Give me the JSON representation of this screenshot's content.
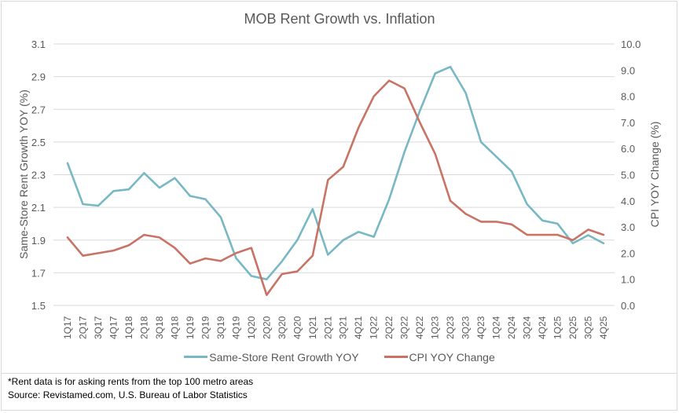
{
  "chart_data": {
    "type": "line",
    "title": "MOB Rent Growth vs. Inflation",
    "xlabel": "",
    "ylabel": "Same-Store Rent Growth YOY (%)",
    "y2label": "CPI YOY Change (%)",
    "ylim": [
      1.5,
      3.1
    ],
    "y2lim": [
      0.0,
      10.0
    ],
    "yticks": [
      "1.5",
      "1.7",
      "1.9",
      "2.1",
      "2.3",
      "2.5",
      "2.7",
      "2.9",
      "3.1"
    ],
    "y2ticks": [
      "0.0",
      "1.0",
      "2.0",
      "3.0",
      "4.0",
      "5.0",
      "6.0",
      "7.0",
      "8.0",
      "9.0",
      "10.0"
    ],
    "grid": true,
    "legend_position": "bottom",
    "categories": [
      "1Q17",
      "2Q17",
      "3Q17",
      "4Q17",
      "1Q18",
      "2Q18",
      "3Q18",
      "4Q18",
      "1Q19",
      "2Q19",
      "3Q19",
      "4Q19",
      "1Q20",
      "2Q20",
      "3Q20",
      "4Q20",
      "1Q21",
      "2Q21",
      "3Q21",
      "4Q21",
      "1Q22",
      "2Q22",
      "3Q22",
      "4Q22",
      "1Q23",
      "2Q23",
      "3Q23",
      "4Q23",
      "1Q24",
      "2Q24",
      "3Q24",
      "4Q24",
      "1Q25",
      "2Q25",
      "3Q25",
      "4Q25"
    ],
    "series": [
      {
        "name": "Same-Store Rent Growth YOY",
        "axis": "left",
        "color": "#78b8c4",
        "values": [
          2.37,
          2.12,
          2.11,
          2.2,
          2.21,
          2.31,
          2.22,
          2.28,
          2.17,
          2.15,
          2.04,
          1.79,
          1.68,
          1.66,
          1.77,
          1.9,
          2.09,
          1.81,
          1.9,
          1.95,
          1.92,
          2.15,
          2.44,
          2.69,
          2.92,
          2.96,
          2.8,
          2.5,
          2.41,
          2.32,
          2.12,
          2.02,
          2.0,
          1.88,
          1.93,
          1.88
        ]
      },
      {
        "name": "CPI YOY Change",
        "axis": "right",
        "color": "#c87366",
        "values": [
          2.6,
          1.9,
          2.0,
          2.1,
          2.3,
          2.7,
          2.6,
          2.2,
          1.6,
          1.8,
          1.7,
          2.0,
          2.2,
          0.4,
          1.2,
          1.3,
          1.9,
          4.8,
          5.3,
          6.8,
          8.0,
          8.6,
          8.3,
          7.0,
          5.8,
          4.0,
          3.5,
          3.2,
          3.2,
          3.1,
          2.7,
          2.7,
          2.7,
          2.5,
          2.9,
          2.7
        ]
      }
    ]
  },
  "footnotes": {
    "note": "*Rent data is for asking rents from the top 100 metro areas",
    "source": "Source: Revistamed.com, U.S. Bureau of Labor Statistics"
  }
}
